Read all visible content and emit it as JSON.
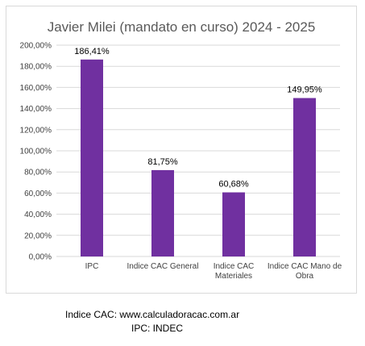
{
  "chart_data": {
    "type": "bar",
    "title": "Javier Milei (mandato en curso) 2024 - 2025",
    "categories": [
      [
        "IPC"
      ],
      [
        "Indice CAC General"
      ],
      [
        "Indice CAC",
        "Materiales"
      ],
      [
        "Indice CAC Mano de",
        "Obra"
      ]
    ],
    "values": [
      186.41,
      81.75,
      60.68,
      149.95
    ],
    "data_labels": [
      "186,41%",
      "81,75%",
      "60,68%",
      "149,95%"
    ],
    "ylim": [
      0,
      200
    ],
    "yticks": [
      0,
      20,
      40,
      60,
      80,
      100,
      120,
      140,
      160,
      180,
      200
    ],
    "ytick_labels": [
      "0,00%",
      "20,00%",
      "40,00%",
      "60,00%",
      "80,00%",
      "100,00%",
      "120,00%",
      "140,00%",
      "160,00%",
      "180,00%",
      "200,00%"
    ],
    "grid": true,
    "bar_color": "#7030a0"
  },
  "sources": {
    "line1": "Indice CAC: www.calculadoracac.com.ar",
    "line2": "IPC: INDEC"
  }
}
